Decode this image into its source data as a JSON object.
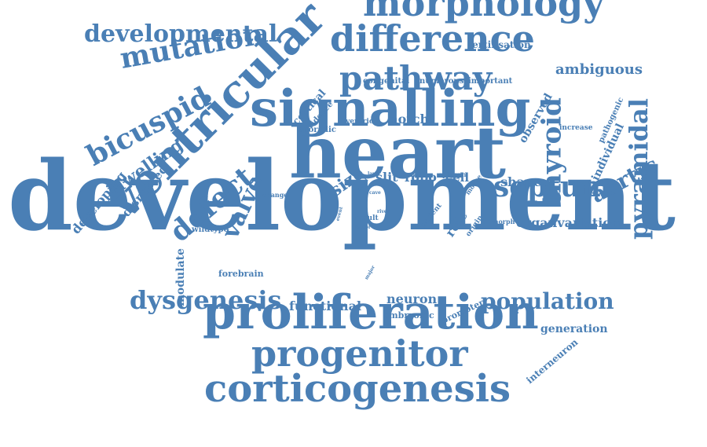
{
  "colors": {
    "word": "#4a7fb5",
    "background": "#ffffff"
  },
  "words": [
    {
      "text": "development"
    },
    {
      "text": "heart"
    },
    {
      "text": "signalling"
    },
    {
      "text": "ventricular"
    },
    {
      "text": "proliferation"
    },
    {
      "text": "corticogenesis"
    },
    {
      "text": "progenitor"
    },
    {
      "text": "morphology"
    },
    {
      "text": "difference"
    },
    {
      "text": "pathway"
    },
    {
      "text": "developmental"
    },
    {
      "text": "mutation"
    },
    {
      "text": "bicuspid"
    },
    {
      "text": "defect"
    },
    {
      "text": "valve"
    },
    {
      "text": "thyroid"
    },
    {
      "text": "septum"
    },
    {
      "text": "pyramidal"
    },
    {
      "text": "aortic"
    },
    {
      "text": "dysgenesis"
    },
    {
      "text": "population"
    },
    {
      "text": "dwelling"
    },
    {
      "text": "developing"
    },
    {
      "text": "disrupted"
    },
    {
      "text": "ambiguous"
    },
    {
      "text": "fertilisation"
    },
    {
      "text": "congenital"
    },
    {
      "text": "numerous"
    },
    {
      "text": "important"
    },
    {
      "text": "cortical"
    },
    {
      "text": "evidence"
    },
    {
      "text": "sporadic"
    },
    {
      "text": "ventricle"
    },
    {
      "text": "notch"
    },
    {
      "text": "observed"
    },
    {
      "text": "pathogenic"
    },
    {
      "text": "individual"
    },
    {
      "text": "increase"
    },
    {
      "text": "size"
    },
    {
      "text": "slit"
    },
    {
      "text": "robo"
    },
    {
      "text": "cell"
    },
    {
      "text": "epigean"
    },
    {
      "text": "mouse"
    },
    {
      "text": "family"
    },
    {
      "text": "layer"
    },
    {
      "text": "novel"
    },
    {
      "text": "cave"
    },
    {
      "text": "change"
    },
    {
      "text": "shape"
    },
    {
      "text": "organvariation"
    },
    {
      "text": "role"
    },
    {
      "text": "origin"
    },
    {
      "text": "morph"
    },
    {
      "text": "patient"
    },
    {
      "text": "result"
    },
    {
      "text": "factor"
    },
    {
      "text": "river"
    },
    {
      "text": "event"
    },
    {
      "text": "wildtype"
    },
    {
      "text": "forebrain"
    },
    {
      "text": "modulate"
    },
    {
      "text": "functional"
    },
    {
      "text": "neuron"
    },
    {
      "text": "embryonic"
    },
    {
      "text": "promoter"
    },
    {
      "text": "major"
    },
    {
      "text": "generation"
    },
    {
      "text": "interneuron"
    }
  ]
}
